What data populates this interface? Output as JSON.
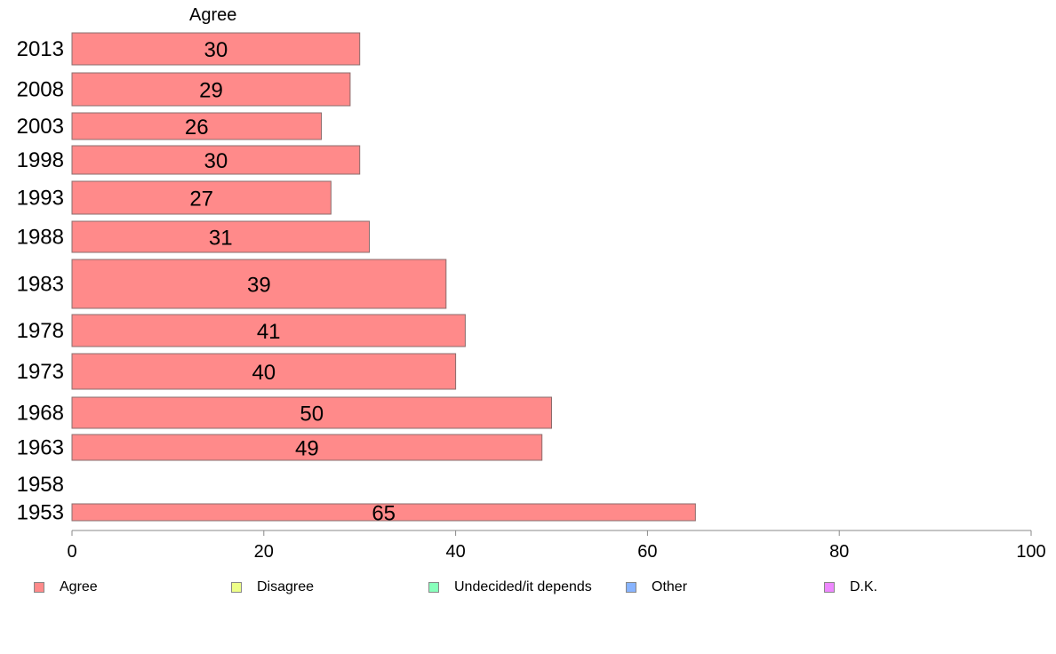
{
  "chart_data": {
    "type": "bar",
    "orientation": "horizontal",
    "series_header": "Agree",
    "categories": [
      "2013",
      "2008",
      "2003",
      "1998",
      "1993",
      "1988",
      "1983",
      "1978",
      "1973",
      "1968",
      "1963",
      "1958",
      "1953"
    ],
    "series": [
      {
        "name": "Agree",
        "values": [
          30,
          29,
          26,
          30,
          27,
          31,
          39,
          41,
          40,
          50,
          49,
          null,
          65
        ],
        "value_labels": [
          "30",
          "29",
          "26",
          "30",
          "27",
          "31",
          "39",
          "41",
          "40",
          "50",
          "49",
          "",
          "65"
        ],
        "color": "#ff8a8a"
      }
    ],
    "legend": [
      {
        "name": "Agree",
        "color": "#ff8a8a"
      },
      {
        "name": "Disagree",
        "color": "#eeff88"
      },
      {
        "name": "Undecided/it depends",
        "color": "#88ffbb"
      },
      {
        "name": "Other",
        "color": "#88b4ff"
      },
      {
        "name": "D.K.",
        "color": "#ee88ff"
      }
    ],
    "legend_position": "bottom",
    "xlim": [
      0,
      100
    ],
    "x_ticks": [
      "0",
      "20",
      "40",
      "60",
      "80",
      "100"
    ],
    "grid": false
  }
}
